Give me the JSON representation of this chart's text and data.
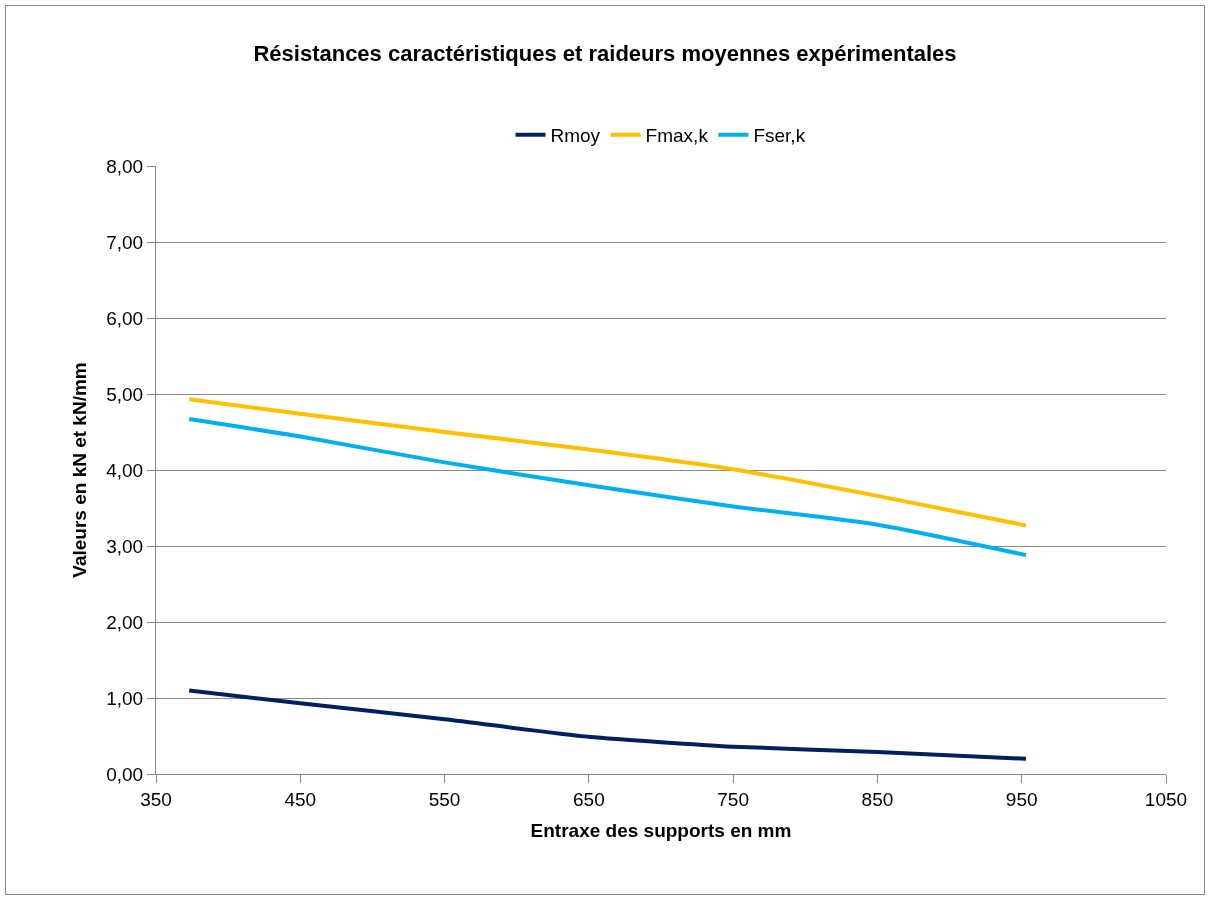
{
  "chart_data": {
    "type": "line",
    "title": "Résistances caractéristiques et raideurs moyennes expérimentales",
    "xlabel": "Entraxe des supports en mm",
    "ylabel": "Valeurs en kN et kN/mm",
    "x": [
      373,
      450,
      550,
      650,
      750,
      850,
      953
    ],
    "series": [
      {
        "name": "Rmoy",
        "color": "#002060",
        "values": [
          1.1,
          0.93,
          0.72,
          0.49,
          0.36,
          0.29,
          0.2
        ]
      },
      {
        "name": "Fmax,k",
        "color": "#ffc000",
        "values": [
          4.93,
          4.74,
          4.5,
          4.27,
          4.01,
          3.66,
          3.27
        ]
      },
      {
        "name": "Fser,k",
        "color": "#00b0f0",
        "values": [
          4.67,
          4.44,
          4.1,
          3.8,
          3.52,
          3.28,
          2.88
        ]
      }
    ],
    "xlim": [
      350,
      1050
    ],
    "xticks": [
      350,
      450,
      550,
      650,
      750,
      850,
      950,
      1050
    ],
    "ylim": [
      0,
      8
    ],
    "yticks": [
      {
        "value": 0,
        "label": "0,00"
      },
      {
        "value": 1,
        "label": "1,00"
      },
      {
        "value": 2,
        "label": "2,00"
      },
      {
        "value": 3,
        "label": "3,00"
      },
      {
        "value": 4,
        "label": "4,00"
      },
      {
        "value": 5,
        "label": "5,00"
      },
      {
        "value": 6,
        "label": "6,00"
      },
      {
        "value": 7,
        "label": "7,00"
      },
      {
        "value": 8,
        "label": "8,00"
      }
    ],
    "grid": "y",
    "legend": "top",
    "marker": "none",
    "line_style": "solid"
  }
}
